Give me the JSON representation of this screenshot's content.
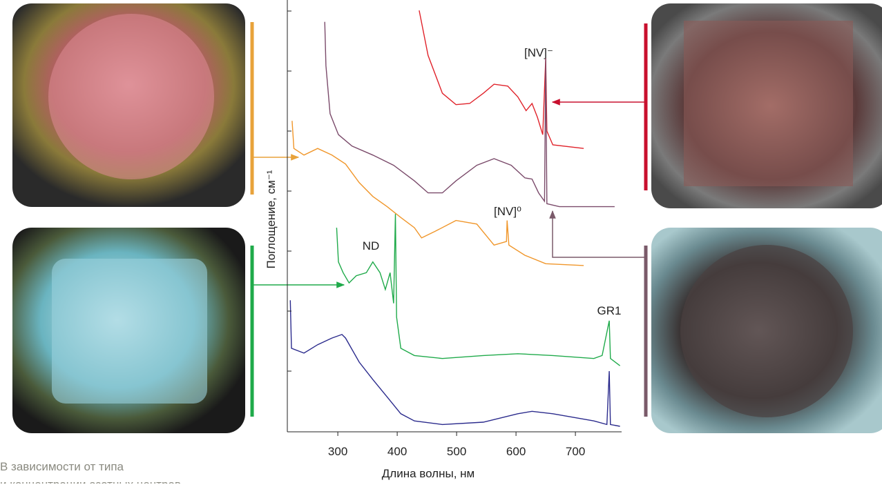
{
  "chart_data": {
    "type": "line",
    "xlabel": "Длина волны, нм",
    "ylabel": "Поглощение, см⁻¹",
    "xlim": [
      215,
      775
    ],
    "ylim": [
      0,
      7
    ],
    "xticks": [
      300,
      400,
      500,
      600,
      700
    ],
    "yticks": [
      1,
      2,
      3,
      4,
      5,
      6,
      7
    ],
    "series": [
      {
        "color": "#e0222a",
        "x": [
          437,
          452,
          476,
          499,
          522,
          545,
          563,
          586,
          603,
          617,
          627,
          636,
          645,
          650,
          652,
          662,
          714
        ],
        "values": [
          7.01,
          6.26,
          5.63,
          5.44,
          5.46,
          5.63,
          5.78,
          5.75,
          5.57,
          5.34,
          5.46,
          5.23,
          4.94,
          6.21,
          5.0,
          4.77,
          4.71
        ]
      },
      {
        "color": "#7a4a6a",
        "x": [
          278,
          280,
          287,
          301,
          324,
          359,
          394,
          429,
          452,
          476,
          499,
          534,
          563,
          592,
          615,
          627,
          638,
          648,
          650,
          652,
          673,
          766
        ],
        "values": [
          6.82,
          6.09,
          5.29,
          4.94,
          4.75,
          4.6,
          4.43,
          4.17,
          3.97,
          3.97,
          4.17,
          4.43,
          4.54,
          4.43,
          4.22,
          4.2,
          3.97,
          3.83,
          6.21,
          3.79,
          3.74,
          3.74
        ]
      },
      {
        "color": "#f0962a",
        "x": [
          223,
          226,
          243,
          266,
          290,
          313,
          336,
          359,
          383,
          406,
          429,
          441,
          464,
          499,
          534,
          563,
          584,
          585,
          588,
          615,
          650,
          714
        ],
        "values": [
          5.17,
          4.71,
          4.6,
          4.71,
          4.6,
          4.45,
          4.14,
          3.91,
          3.74,
          3.56,
          3.39,
          3.22,
          3.33,
          3.51,
          3.45,
          3.1,
          3.16,
          3.51,
          3.1,
          2.93,
          2.79,
          2.76
        ]
      },
      {
        "color": "#1faa4a",
        "x": [
          298,
          301,
          309,
          319,
          331,
          348,
          359,
          371,
          380,
          388,
          394,
          397,
          399,
          406,
          429,
          476,
          545,
          603,
          662,
          731,
          745,
          757,
          759,
          775
        ],
        "values": [
          3.39,
          2.82,
          2.64,
          2.47,
          2.59,
          2.64,
          2.82,
          2.64,
          2.36,
          2.64,
          2.13,
          3.62,
          1.9,
          1.38,
          1.26,
          1.21,
          1.26,
          1.29,
          1.26,
          1.21,
          1.26,
          1.84,
          1.21,
          1.09
        ]
      },
      {
        "color": "#2a2a8c",
        "x": [
          220,
          222,
          243,
          266,
          290,
          307,
          313,
          336,
          359,
          383,
          406,
          429,
          476,
          545,
          603,
          627,
          662,
          731,
          753,
          757,
          759,
          775
        ],
        "values": [
          2.18,
          1.38,
          1.3,
          1.44,
          1.55,
          1.61,
          1.55,
          1.15,
          0.86,
          0.57,
          0.29,
          0.17,
          0.11,
          0.15,
          0.29,
          0.33,
          0.29,
          0.17,
          0.11,
          1.0,
          0.11,
          0.08
        ]
      }
    ],
    "annotations": [
      "[NV]⁻",
      "[NV]⁰",
      "ND",
      "GR1"
    ]
  },
  "caption": [
    "В зависимости от типа",
    "и концентрации азотных центров"
  ]
}
